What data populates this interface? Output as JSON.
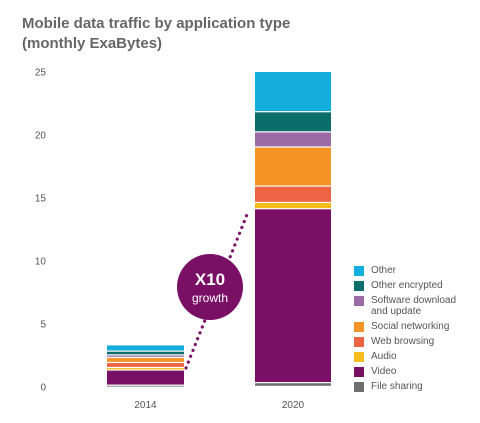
{
  "title": {
    "line1": "Mobile data traffic by application type",
    "line2": "(monthly ExaBytes)"
  },
  "annotation": {
    "line1": "X10",
    "line2": "growth"
  },
  "colors": {
    "Other": "#13aedb",
    "Other encrypted": "#0b6e6a",
    "Software download and update": "#9b6ba6",
    "Social networking": "#f59426",
    "Web browsing": "#ec6444",
    "Audio": "#f6bc19",
    "Video": "#7a0f66",
    "File sharing": "#6e6e6e",
    "bubble": "#7a0f66"
  },
  "chart_data": {
    "type": "bar",
    "stacked": true,
    "categories": [
      "2014",
      "2020"
    ],
    "ylim": [
      0,
      25
    ],
    "yticks": [
      0,
      5,
      10,
      15,
      20,
      25
    ],
    "series": [
      {
        "name": "File sharing",
        "values": [
          0.1,
          0.3
        ]
      },
      {
        "name": "Video",
        "values": [
          1.2,
          13.8
        ]
      },
      {
        "name": "Audio",
        "values": [
          0.2,
          0.5
        ]
      },
      {
        "name": "Web browsing",
        "values": [
          0.4,
          1.3
        ]
      },
      {
        "name": "Social networking",
        "values": [
          0.4,
          3.1
        ]
      },
      {
        "name": "Software download and update",
        "values": [
          0.2,
          1.2
        ]
      },
      {
        "name": "Other encrypted",
        "values": [
          0.3,
          1.6
        ]
      },
      {
        "name": "Other",
        "values": [
          0.5,
          3.2
        ]
      }
    ]
  },
  "legend": [
    {
      "label": "Other",
      "key": "Other"
    },
    {
      "label": "Other encrypted",
      "key": "Other encrypted"
    },
    {
      "label": "Software download\nand update",
      "key": "Software download and update"
    },
    {
      "label": "Social networking",
      "key": "Social networking"
    },
    {
      "label": "Web browsing",
      "key": "Web browsing"
    },
    {
      "label": "Audio",
      "key": "Audio"
    },
    {
      "label": "Video",
      "key": "Video"
    },
    {
      "label": "File sharing",
      "key": "File sharing"
    }
  ]
}
